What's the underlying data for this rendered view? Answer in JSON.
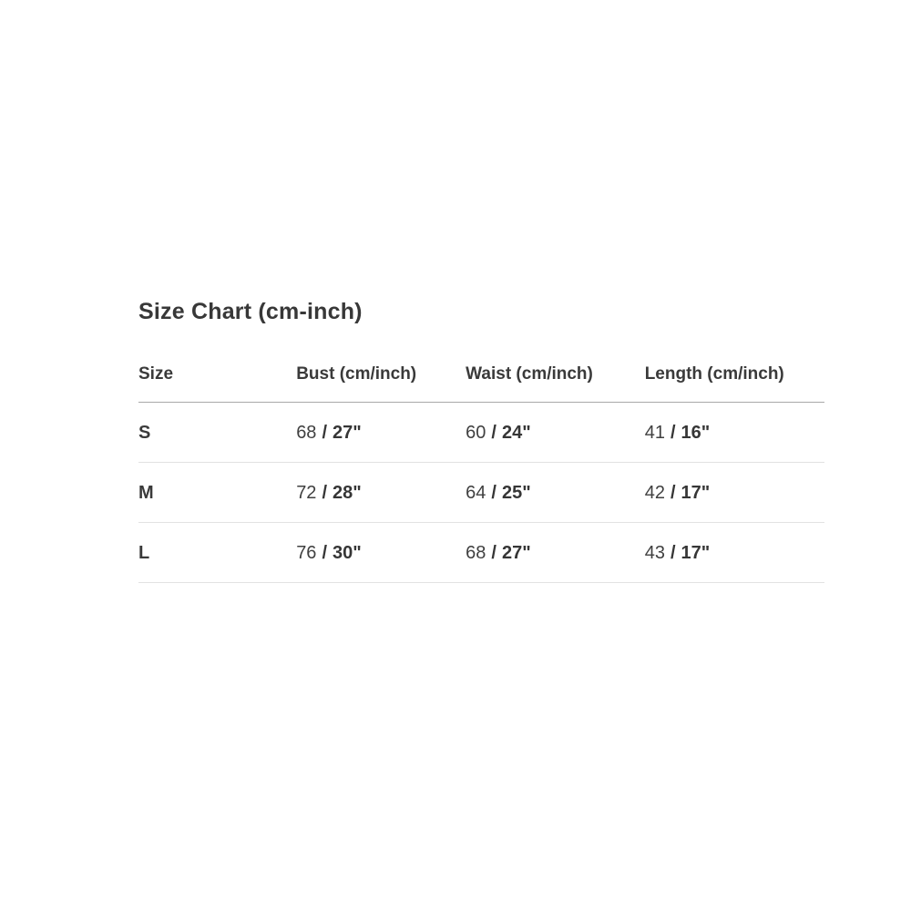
{
  "section": {
    "title": "Size Chart (cm-inch)"
  },
  "table": {
    "separator": "/",
    "columns": [
      {
        "label": "Size"
      },
      {
        "label": "Bust (cm/inch)"
      },
      {
        "label": "Waist (cm/inch)"
      },
      {
        "label": "Length (cm/inch)"
      }
    ],
    "rows": [
      {
        "size": "S",
        "bust_cm": "68",
        "bust_in": "27\"",
        "waist_cm": "60",
        "waist_in": "24\"",
        "length_cm": "41",
        "length_in": "16\""
      },
      {
        "size": "M",
        "bust_cm": "72",
        "bust_in": "28\"",
        "waist_cm": "64",
        "waist_in": "25\"",
        "length_cm": "42",
        "length_in": "17\""
      },
      {
        "size": "L",
        "bust_cm": "76",
        "bust_in": "30\"",
        "waist_cm": "68",
        "waist_in": "27\"",
        "length_cm": "43",
        "length_in": "17\""
      }
    ]
  },
  "colors": {
    "page_background": "#ffffff",
    "text": "#3b3b3b",
    "header_border": "#a8a8a8",
    "row_border": "#e2e2e2"
  }
}
